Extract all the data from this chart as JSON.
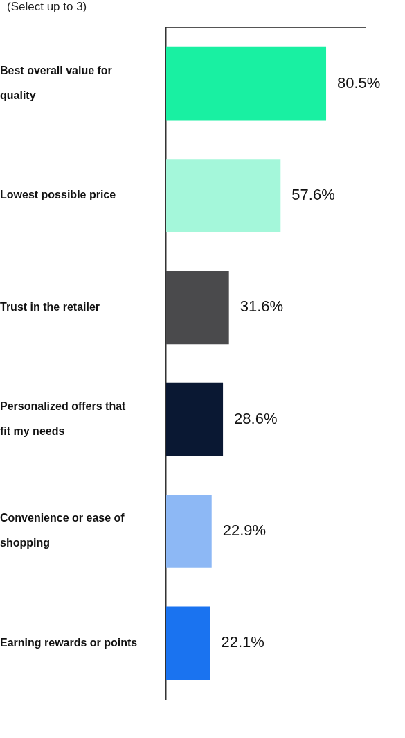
{
  "chart_data": {
    "type": "bar",
    "orientation": "horizontal",
    "subtitle": "(Select up to 3)",
    "categories": [
      "Best overall value for quality",
      "Lowest possible price",
      "Trust in the retailer",
      "Personalized offers that fit my needs",
      "Convenience or ease of shopping",
      "Earning rewards or points"
    ],
    "values": [
      80.5,
      57.6,
      31.6,
      28.6,
      22.9,
      22.1
    ],
    "value_labels": [
      "80.5%",
      "57.6%",
      "31.6%",
      "28.6%",
      "22.9%",
      "22.1%"
    ],
    "colors": [
      "#19f0a2",
      "#a4f7da",
      "#4a4a4c",
      "#0a1833",
      "#8db8f5",
      "#1a73f0"
    ],
    "xlim": [
      0,
      100
    ],
    "tick_labels": "y",
    "grid": false,
    "legend": false
  }
}
